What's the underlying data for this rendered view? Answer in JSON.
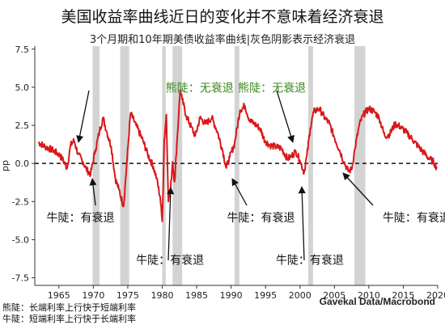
{
  "title": "美国收益率曲线近日的变化并不意味着经济衰退",
  "subtitle": "3个月期和10年期美债收益率曲线|灰色阴影表示经济衰退",
  "source": "Gavekal Data/Macrobond",
  "notes": [
    "熊陡：长端利率上行快于短端利率",
    "牛陡：短端利率上行快于长端利率"
  ],
  "colors": {
    "line": "#d7191c",
    "recession": "#d3d3d3",
    "bear_label": "#3a8a1e",
    "text": "#111111"
  },
  "chart_data": {
    "type": "line",
    "title": "3个月期和10年期美债收益率曲线",
    "ylabel": "pp",
    "xlim": [
      1961.5,
      2020
    ],
    "ylim": [
      -8,
      7.7
    ],
    "xticks": [
      1965,
      1970,
      1975,
      1980,
      1985,
      1990,
      1995,
      2000,
      2005,
      2010,
      2015,
      2020
    ],
    "yticks": [
      -7.5,
      -5.0,
      -2.5,
      0.0,
      2.5,
      5.0,
      7.5
    ],
    "ytick_labels": [
      "-7.5",
      "-5.0",
      "-2.5",
      "0.0",
      "2.5",
      "5.0",
      "7.5"
    ],
    "zero_line": "dashed",
    "recessions": [
      [
        1969.9,
        1970.9
      ],
      [
        1973.9,
        1975.2
      ],
      [
        1980.0,
        1980.5
      ],
      [
        1981.5,
        1982.9
      ],
      [
        1990.5,
        1991.2
      ],
      [
        2001.2,
        2001.9
      ],
      [
        2007.9,
        2009.5
      ]
    ],
    "series": [
      {
        "x": [
          1962.0,
          1963.0,
          1964.0,
          1965.0,
          1965.5,
          1966.2,
          1966.7,
          1967.2,
          1967.8,
          1968.5,
          1969.0,
          1969.6,
          1970.3,
          1970.9,
          1971.4,
          1972.0,
          1972.6,
          1973.2,
          1973.7,
          1974.4,
          1974.9,
          1975.4,
          1976.2,
          1977.2,
          1977.9,
          1978.7,
          1979.2,
          1979.7,
          1980.0,
          1980.3,
          1980.6,
          1980.9,
          1981.2,
          1981.5,
          1981.8,
          1982.2,
          1982.6,
          1982.9,
          1983.5,
          1984.2,
          1984.8,
          1985.5,
          1986.3,
          1987.2,
          1988.0,
          1988.8,
          1989.3,
          1989.8,
          1990.5,
          1991.3,
          1992.0,
          1992.7,
          1993.4,
          1994.2,
          1994.9,
          1995.6,
          1996.4,
          1997.3,
          1998.2,
          1998.8,
          1999.4,
          2000.0,
          2000.6,
          2001.0,
          2001.5,
          2002.0,
          2002.8,
          2003.6,
          2004.3,
          2005.0,
          2005.8,
          2006.4,
          2007.0,
          2007.5,
          2008.0,
          2008.6,
          2009.2,
          2010.0,
          2010.8,
          2011.5,
          2012.3,
          2013.0,
          2013.8,
          2014.6,
          2015.5,
          2016.3,
          2017.2,
          2018.0,
          2018.8,
          2019.4,
          2019.9
        ],
        "y": [
          1.4,
          1.1,
          0.9,
          0.6,
          0.3,
          -0.3,
          1.2,
          1.5,
          0.6,
          0.1,
          -0.4,
          -0.7,
          0.9,
          2.1,
          3.0,
          2.0,
          1.1,
          -1.0,
          -1.7,
          -2.8,
          0.3,
          3.3,
          2.5,
          1.5,
          0.6,
          -0.2,
          -1.0,
          -2.2,
          -3.8,
          1.5,
          3.2,
          -2.5,
          -1.8,
          0.1,
          -1.2,
          1.8,
          4.8,
          4.2,
          3.1,
          2.4,
          1.8,
          3.0,
          2.6,
          3.0,
          2.1,
          0.8,
          -0.3,
          0.4,
          1.3,
          3.5,
          3.8,
          2.8,
          2.6,
          2.3,
          1.5,
          1.2,
          1.1,
          1.0,
          0.3,
          0.5,
          0.8,
          0.2,
          -0.6,
          0.5,
          2.3,
          3.4,
          3.6,
          3.0,
          2.6,
          1.7,
          0.8,
          0.1,
          -0.5,
          -0.4,
          1.0,
          2.5,
          3.2,
          3.6,
          3.4,
          3.0,
          1.8,
          1.9,
          2.6,
          2.4,
          2.0,
          1.6,
          1.1,
          0.7,
          0.3,
          0.1,
          -0.3
        ]
      }
    ],
    "annotations": [
      {
        "text": "熊陡：无衰退",
        "type": "bear",
        "x": 1980.5,
        "y": 4.7
      },
      {
        "text": "熊陡：无衰退",
        "type": "bear",
        "x": 1991.0,
        "y": 4.7
      },
      {
        "text": "牛陡：有衰退",
        "type": "bull",
        "x": 1963.2,
        "y": -3.8
      },
      {
        "text": "牛陡：有衰退",
        "type": "bull",
        "x": 1976.2,
        "y": -6.6
      },
      {
        "text": "牛陡：有衰退",
        "type": "bull",
        "x": 1989.4,
        "y": -3.8
      },
      {
        "text": "牛陡：有衰退",
        "type": "bull",
        "x": 1996.5,
        "y": -6.6
      },
      {
        "text": "牛陡：有衰退",
        "type": "bull",
        "x": 2012.0,
        "y": -3.8
      }
    ]
  }
}
